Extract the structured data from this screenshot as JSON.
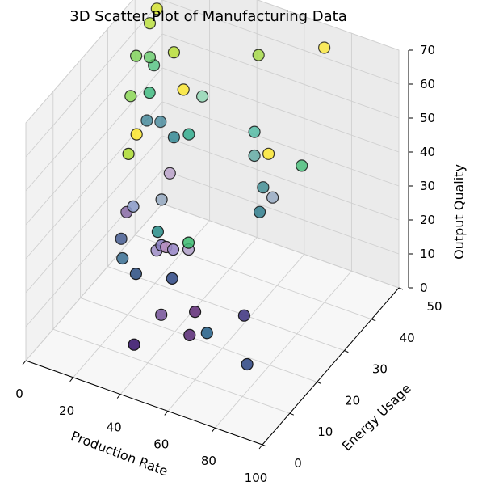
{
  "chart_data": {
    "type": "scatter",
    "projection": "3d",
    "title": "3D Scatter Plot of Manufacturing Data",
    "xlabel": "Production Rate",
    "ylabel": "Energy Usage",
    "zlabel": "Output Quality",
    "xlim": [
      0,
      100
    ],
    "ylim": [
      0,
      50
    ],
    "zlim": [
      0,
      70
    ],
    "xticks": [
      "0",
      "20",
      "40",
      "60",
      "80",
      "100"
    ],
    "yticks": [
      "0",
      "10",
      "20",
      "30",
      "40",
      "50"
    ],
    "zticks": [
      "0",
      "10",
      "20",
      "30",
      "40",
      "50",
      "60",
      "70"
    ],
    "grid": true,
    "colormap": "viridis",
    "points": [
      {
        "x": 5,
        "y": 45,
        "z": 75,
        "color": "#fde725"
      },
      {
        "x": 8,
        "y": 45,
        "z": 70,
        "color": "#fde725"
      },
      {
        "x": 8,
        "y": 40,
        "z": 52,
        "color": "#3fbc73"
      },
      {
        "x": 5,
        "y": 40,
        "z": 35,
        "color": "#2a788e"
      },
      {
        "x": 5,
        "y": 45,
        "z": 30,
        "color": "#2a788e"
      },
      {
        "x": 15,
        "y": 35,
        "z": 75,
        "color": "#d2e21b"
      },
      {
        "x": 12,
        "y": 35,
        "z": 70,
        "color": "#b5de2b"
      },
      {
        "x": 12,
        "y": 30,
        "z": 65,
        "color": "#7ad151"
      },
      {
        "x": 12,
        "y": 35,
        "z": 60,
        "color": "#5ec962"
      },
      {
        "x": 12,
        "y": 28,
        "z": 55,
        "color": "#84d44b"
      },
      {
        "x": 20,
        "y": 28,
        "z": 58,
        "color": "#35b779"
      },
      {
        "x": 18,
        "y": 25,
        "z": 48,
        "color": "#fde725"
      },
      {
        "x": 18,
        "y": 22,
        "z": 45,
        "color": "#addc30"
      },
      {
        "x": 28,
        "y": 30,
        "z": 70,
        "color": "#b5de2b"
      },
      {
        "x": 32,
        "y": 30,
        "z": 60,
        "color": "#fde725"
      },
      {
        "x": 40,
        "y": 30,
        "z": 60,
        "color": "#8cd5b0"
      },
      {
        "x": 28,
        "y": 30,
        "z": 45,
        "color": "#26828e"
      },
      {
        "x": 32,
        "y": 32,
        "z": 45,
        "color": "#21a685"
      },
      {
        "x": 32,
        "y": 25,
        "z": 40,
        "color": "#b8a0c8"
      },
      {
        "x": 32,
        "y": 22,
        "z": 35,
        "color": "#94a8c0"
      },
      {
        "x": 20,
        "y": 22,
        "z": 30,
        "color": "#8a9ac8"
      },
      {
        "x": 35,
        "y": 18,
        "z": 30,
        "color": "#2a8e8a"
      },
      {
        "x": 38,
        "y": 15,
        "z": 28,
        "color": "#a090c8"
      },
      {
        "x": 40,
        "y": 15,
        "z": 30,
        "color": "#8a80c0"
      },
      {
        "x": 42,
        "y": 15,
        "z": 30,
        "color": "#b890c0"
      },
      {
        "x": 45,
        "y": 15,
        "z": 30,
        "color": "#9a8ac8"
      },
      {
        "x": 48,
        "y": 18,
        "z": 28,
        "color": "#b0a0c8"
      },
      {
        "x": 48,
        "y": 18,
        "z": 30,
        "color": "#3fbc73"
      },
      {
        "x": 58,
        "y": 35,
        "z": 72,
        "color": "#a0da39"
      },
      {
        "x": 62,
        "y": 30,
        "z": 55,
        "color": "#4ab8a0"
      },
      {
        "x": 62,
        "y": 30,
        "z": 48,
        "color": "#5aa8a0"
      },
      {
        "x": 68,
        "y": 30,
        "z": 50,
        "color": "#fde725"
      },
      {
        "x": 68,
        "y": 28,
        "z": 42,
        "color": "#3a8a90"
      },
      {
        "x": 72,
        "y": 28,
        "z": 40,
        "color": "#94a8c0"
      },
      {
        "x": 70,
        "y": 25,
        "z": 38,
        "color": "#2a7a8a"
      },
      {
        "x": 80,
        "y": 40,
        "z": 75,
        "color": "#fde725"
      },
      {
        "x": 82,
        "y": 30,
        "z": 50,
        "color": "#3fbc73"
      },
      {
        "x": 8,
        "y": 30,
        "z": 18,
        "color": "#8060a0"
      },
      {
        "x": 8,
        "y": 28,
        "z": 12,
        "color": "#3b528b"
      },
      {
        "x": 12,
        "y": 25,
        "z": 10,
        "color": "#31688e"
      },
      {
        "x": 35,
        "y": 10,
        "z": 25,
        "color": "#3a5a8a"
      },
      {
        "x": 48,
        "y": 12,
        "z": 25,
        "color": "#3b528b"
      },
      {
        "x": 48,
        "y": 8,
        "z": 18,
        "color": "#8060a0"
      },
      {
        "x": 60,
        "y": 10,
        "z": 20,
        "color": "#6a3a80"
      },
      {
        "x": 60,
        "y": 8,
        "z": 15,
        "color": "#653a80"
      },
      {
        "x": 65,
        "y": 10,
        "z": 15,
        "color": "#31688e"
      },
      {
        "x": 75,
        "y": 15,
        "z": 18,
        "color": "#443a83"
      },
      {
        "x": 82,
        "y": 10,
        "z": 10,
        "color": "#3b528b"
      },
      {
        "x": 40,
        "y": 5,
        "z": 10,
        "color": "#482878"
      }
    ]
  }
}
